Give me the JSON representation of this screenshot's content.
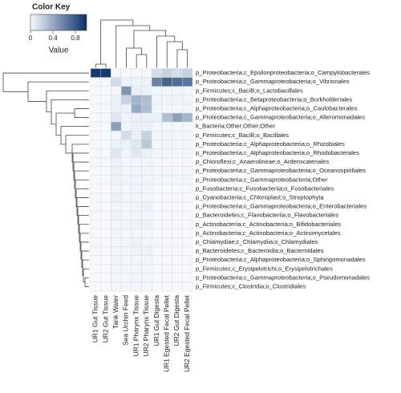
{
  "chart_data": {
    "type": "heatmap",
    "key_title": "Color Key",
    "key_label": "Value",
    "klim": [
      0,
      1
    ],
    "kticks": [
      0,
      0.4,
      0.8
    ],
    "low_color": "#f7fbff",
    "high_color": "#08306b",
    "columns": [
      "UR1 Gut Tissue",
      "UR2 Gut Tissue",
      "Tank Water",
      "Sea Urchin Feed",
      "UR1 Pharynx Tissue",
      "UR2 Pharynx Tissue",
      "UR1 Gut Digesta",
      "UR1 Egested Fecal Pellet",
      "UR2 Gut Digesta",
      "UR2 Egested Fecal Pellet"
    ],
    "rows": [
      "p_Proteobacteria;c_Epsilonproteobacteria;o_Campylobacterales",
      "p_Proteobacteria;c_Gammaproteobacteria;o_Vibrionales",
      "p_Firmicutes;c_Bacilli;o_Lactobacillales",
      "p_Proteobacteria;c_Betaproteobacteria;o_Burkholderiales",
      "p_Proteobacteria;c_Alphaproteobacteria;o_Caulobacterales",
      "p_Proteobacteria;c_Gammaproteobacteria;o_Alteromonadales",
      "k_Bacteria;Other;Other;Other",
      "p_Firmicutes;c_Bacilli;o_Bacillales",
      "p_Proteobacteria;c_Alphaproteobacteria;o_Rhizobiales",
      "p_Proteobacteria;c_Alphaproteobacteria;o_Rhodobacterales",
      "p_Chloroflexi;c_Anaerolineae;o_Ardenscatenales",
      "p_Proteobacteria;c_Gammaproteobacteria;o_Oceanospirillales",
      "p_Proteobacteria;c_Gammaproteobacteria;Other",
      "p_Fusobacteria;c_Fusobacteriia;o_Fusobacteriales",
      "p_Cyanobacteria;c_Chloroplast;o_Streptophyta",
      "p_Proteobacteria;c_Gammaproteobacteria;o_Enterobacteriales",
      "p_Bacteroidetes;c_Flavobacteriia;o_Flavobacteriales",
      "p_Actinobacteria;c_Actinobacteria;o_Bifidobacteriales",
      "p_Actinobacteria;c_Actinobacteria;o_Actinomycetales",
      "p_Chlamydiae;c_Chlamydiia;o_Chlamydiales",
      "p_Bacteroidetes;c_Bacteroidia;o_Bacteroidales",
      "p_Proteobacteria;c_Alphaproteobacteria;o_Sphingomonadales",
      "p_Firmicutes;c_Erysipelotrichi;o_Erysipelotrichales",
      "p_Proteobacteria;c_Gammaproteobacteria;o_Pseudomonadales",
      "p_Firmicutes;c_Clostridia;o_Clostridiales"
    ],
    "values": [
      [
        0.95,
        0.95,
        0.02,
        0.02,
        0.02,
        0.02,
        0.15,
        0.2,
        0.15,
        0.2
      ],
      [
        0.01,
        0.01,
        0.15,
        0.05,
        0.05,
        0.05,
        0.6,
        0.75,
        0.7,
        0.65
      ],
      [
        0.01,
        0.01,
        0.02,
        0.5,
        0.05,
        0.05,
        0.02,
        0.02,
        0.02,
        0.02
      ],
      [
        0.01,
        0.01,
        0.05,
        0.2,
        0.35,
        0.3,
        0.03,
        0.03,
        0.03,
        0.03
      ],
      [
        0.01,
        0.01,
        0.05,
        0.05,
        0.4,
        0.3,
        0.02,
        0.02,
        0.02,
        0.02
      ],
      [
        0.01,
        0.01,
        0.1,
        0.03,
        0.05,
        0.05,
        0.05,
        0.3,
        0.45,
        0.35
      ],
      [
        0.01,
        0.01,
        0.45,
        0.03,
        0.05,
        0.05,
        0.02,
        0.02,
        0.02,
        0.02
      ],
      [
        0.01,
        0.01,
        0.03,
        0.15,
        0.05,
        0.2,
        0.02,
        0.02,
        0.02,
        0.02
      ],
      [
        0.01,
        0.01,
        0.05,
        0.05,
        0.1,
        0.25,
        0.02,
        0.02,
        0.02,
        0.02
      ],
      [
        0.01,
        0.01,
        0.1,
        0.03,
        0.1,
        0.05,
        0.02,
        0.02,
        0.02,
        0.02
      ],
      [
        0.01,
        0.01,
        0.05,
        0.02,
        0.03,
        0.03,
        0.01,
        0.01,
        0.01,
        0.01
      ],
      [
        0.01,
        0.01,
        0.05,
        0.02,
        0.03,
        0.03,
        0.02,
        0.02,
        0.02,
        0.02
      ],
      [
        0.01,
        0.01,
        0.04,
        0.02,
        0.03,
        0.03,
        0.02,
        0.02,
        0.02,
        0.02
      ],
      [
        0.01,
        0.01,
        0.02,
        0.02,
        0.03,
        0.03,
        0.01,
        0.01,
        0.01,
        0.01
      ],
      [
        0.01,
        0.01,
        0.05,
        0.02,
        0.02,
        0.02,
        0.01,
        0.01,
        0.01,
        0.01
      ],
      [
        0.01,
        0.01,
        0.02,
        0.02,
        0.03,
        0.05,
        0.01,
        0.01,
        0.01,
        0.01
      ],
      [
        0.01,
        0.01,
        0.04,
        0.02,
        0.03,
        0.03,
        0.01,
        0.01,
        0.01,
        0.01
      ],
      [
        0.01,
        0.01,
        0.02,
        0.02,
        0.04,
        0.04,
        0.01,
        0.01,
        0.01,
        0.01
      ],
      [
        0.01,
        0.01,
        0.03,
        0.02,
        0.02,
        0.02,
        0.01,
        0.01,
        0.01,
        0.01
      ],
      [
        0.01,
        0.01,
        0.02,
        0.02,
        0.05,
        0.03,
        0.01,
        0.01,
        0.01,
        0.01
      ],
      [
        0.01,
        0.01,
        0.02,
        0.02,
        0.04,
        0.04,
        0.01,
        0.01,
        0.01,
        0.01
      ],
      [
        0.01,
        0.01,
        0.03,
        0.02,
        0.02,
        0.02,
        0.01,
        0.01,
        0.01,
        0.01
      ],
      [
        0.01,
        0.01,
        0.02,
        0.02,
        0.02,
        0.02,
        0.01,
        0.01,
        0.01,
        0.01
      ],
      [
        0.01,
        0.01,
        0.02,
        0.02,
        0.02,
        0.02,
        0.01,
        0.01,
        0.01,
        0.01
      ],
      [
        0.01,
        0.01,
        0.02,
        0.02,
        0.02,
        0.02,
        0.01,
        0.01,
        0.01,
        0.01
      ]
    ]
  }
}
